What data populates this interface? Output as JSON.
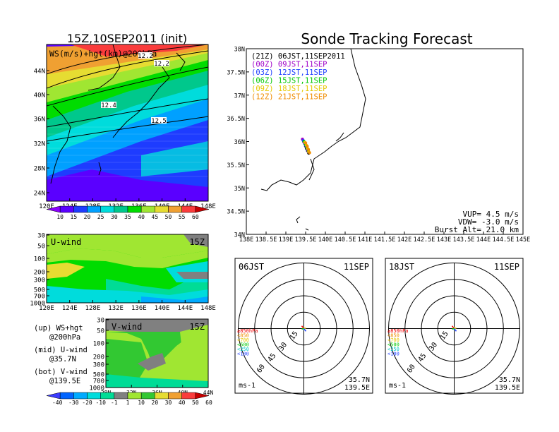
{
  "header": {
    "left_title": "15Z,10SEP2011 (init)",
    "main_title": "Sonde Tracking Forecast"
  },
  "colors": {
    "ws_scale": [
      "#8b00ff",
      "#5a00ff",
      "#1e3cff",
      "#00a0ff",
      "#00dcdc",
      "#00c88c",
      "#00dc00",
      "#a0e632",
      "#e6dc32",
      "#f0a032",
      "#fa3c3c",
      "#c80000"
    ],
    "wind_scale": [
      "#3c3cff",
      "#0064ff",
      "#00aaff",
      "#00dcdc",
      "#00dc96",
      "#808080",
      "#a0e632",
      "#32c832",
      "#e6dc32",
      "#f0a032",
      "#fa3c3c",
      "#c80000"
    ],
    "launch_colors": [
      "#000000",
      "#a000c8",
      "#2040ff",
      "#00c800",
      "#e6c800",
      "#f08c00"
    ],
    "level_colors": [
      "#f00000",
      "#f08c00",
      "#e6c800",
      "#00c800",
      "#00c8c8",
      "#2040ff"
    ]
  },
  "chart_data": [
    {
      "panel": "upper-left map",
      "type": "heatmap",
      "label": "WS(m/s)+hgt(km)@200hPa",
      "x_ticks": [
        "120E",
        "124E",
        "128E",
        "132E",
        "136E",
        "140E",
        "144E",
        "148E"
      ],
      "y_ticks": [
        "44N",
        "40N",
        "36N",
        "32N",
        "28N",
        "24N"
      ],
      "contour_labels": [
        "12.2",
        "12.2",
        "12.4",
        "12.5"
      ],
      "colorbar_ticks": [
        "10",
        "15",
        "20",
        "25",
        "30",
        "35",
        "40",
        "45",
        "50",
        "55",
        "60"
      ]
    },
    {
      "panel": "middle-left cross-section",
      "type": "heatmap",
      "label": "U-wind",
      "time": "15Z",
      "x_ticks": [
        "120E",
        "124E",
        "128E",
        "132E",
        "136E",
        "140E",
        "144E",
        "148E"
      ],
      "y_ticks": [
        "30",
        "50",
        "100",
        "200",
        "300",
        "500",
        "700",
        "1000"
      ]
    },
    {
      "panel": "lower-left cross-section",
      "type": "heatmap",
      "label": "V-wind",
      "time": "15Z",
      "x_ticks": [
        "28N",
        "32N",
        "36N",
        "40N",
        "44N"
      ],
      "y_ticks": [
        "30",
        "50",
        "100",
        "200",
        "300",
        "500",
        "700",
        "1000"
      ],
      "colorbar_ticks": [
        "-40",
        "-30",
        "-20",
        "-10",
        "-1",
        "1",
        "10",
        "20",
        "30",
        "40",
        "50",
        "60"
      ]
    },
    {
      "panel": "tracking map",
      "type": "scatter",
      "x_ticks": [
        "138E",
        "138.5E",
        "139E",
        "139.5E",
        "140E",
        "140.5E",
        "141E",
        "141.5E",
        "142E",
        "142.5E",
        "143E",
        "143.5E",
        "144E",
        "144.5E",
        "145E"
      ],
      "y_ticks": [
        "38N",
        "37.5N",
        "37N",
        "36.5N",
        "36N",
        "35.5N",
        "35N",
        "34.5N",
        "34N"
      ],
      "xlim": [
        138,
        145
      ],
      "ylim": [
        34,
        38
      ],
      "legend": [
        {
          "code": "(21Z)",
          "time": "06JST,11SEP2011"
        },
        {
          "code": "(00Z)",
          "time": "09JST,11SEP"
        },
        {
          "code": "(03Z)",
          "time": "12JST,11SEP"
        },
        {
          "code": "(06Z)",
          "time": "15JST,11SEP"
        },
        {
          "code": "(09Z)",
          "time": "18JST,11SEP"
        },
        {
          "code": "(12Z)",
          "time": "21JST,11SEP"
        }
      ],
      "info": [
        "VUP= 4.5 m/s",
        "VDW= -3.0 m/s",
        "Burst Alt= 21.0 km"
      ],
      "tracks": [
        {
          "lon": [
            139.45,
            139.48,
            139.5,
            139.52,
            139.55,
            139.58
          ],
          "lat": [
            36.0,
            35.95,
            35.9,
            35.85,
            35.8,
            35.75
          ]
        },
        {
          "lon": [
            139.42,
            139.46,
            139.5,
            139.53,
            139.56
          ],
          "lat": [
            36.05,
            35.98,
            35.92,
            35.86,
            35.8
          ]
        },
        {
          "lon": [
            139.44,
            139.48,
            139.51,
            139.54
          ],
          "lat": [
            36.02,
            35.96,
            35.9,
            35.84
          ]
        },
        {
          "lon": [
            139.46,
            139.5,
            139.53,
            139.57
          ],
          "lat": [
            36.0,
            35.93,
            35.87,
            35.8
          ]
        },
        {
          "lon": [
            139.48,
            139.52,
            139.55,
            139.58
          ],
          "lat": [
            35.98,
            35.92,
            35.85,
            35.78
          ]
        },
        {
          "lon": [
            139.5,
            139.54,
            139.57,
            139.6
          ],
          "lat": [
            35.97,
            35.9,
            35.83,
            35.76
          ]
        }
      ]
    },
    {
      "panel": "hodograph 06JST",
      "type": "scatter",
      "label": "06JST",
      "date": "11SEP",
      "ring_labels": [
        "15",
        "30",
        "45",
        "60"
      ],
      "levels": [
        "≥850hPa",
        "<850",
        "<700",
        "<500",
        "<250",
        "<100"
      ],
      "unit": "ms-1",
      "location": [
        "35.7N",
        "139.5E"
      ]
    },
    {
      "panel": "hodograph 18JST",
      "type": "scatter",
      "label": "18JST",
      "date": "11SEP",
      "ring_labels": [
        "15",
        "30",
        "45",
        "60"
      ],
      "levels": [
        "≥850hPa",
        "<850",
        "<700",
        "<500",
        "<250",
        "<100"
      ],
      "unit": "ms-1",
      "location": [
        "35.7N",
        "139.5E"
      ]
    }
  ],
  "notes": {
    "up": [
      "(up) WS+hgt",
      "@200hPa"
    ],
    "mid": [
      "(mid) U-wind",
      "@35.7N"
    ],
    "bot": [
      "(bot) V-wind",
      "@139.5E"
    ]
  }
}
